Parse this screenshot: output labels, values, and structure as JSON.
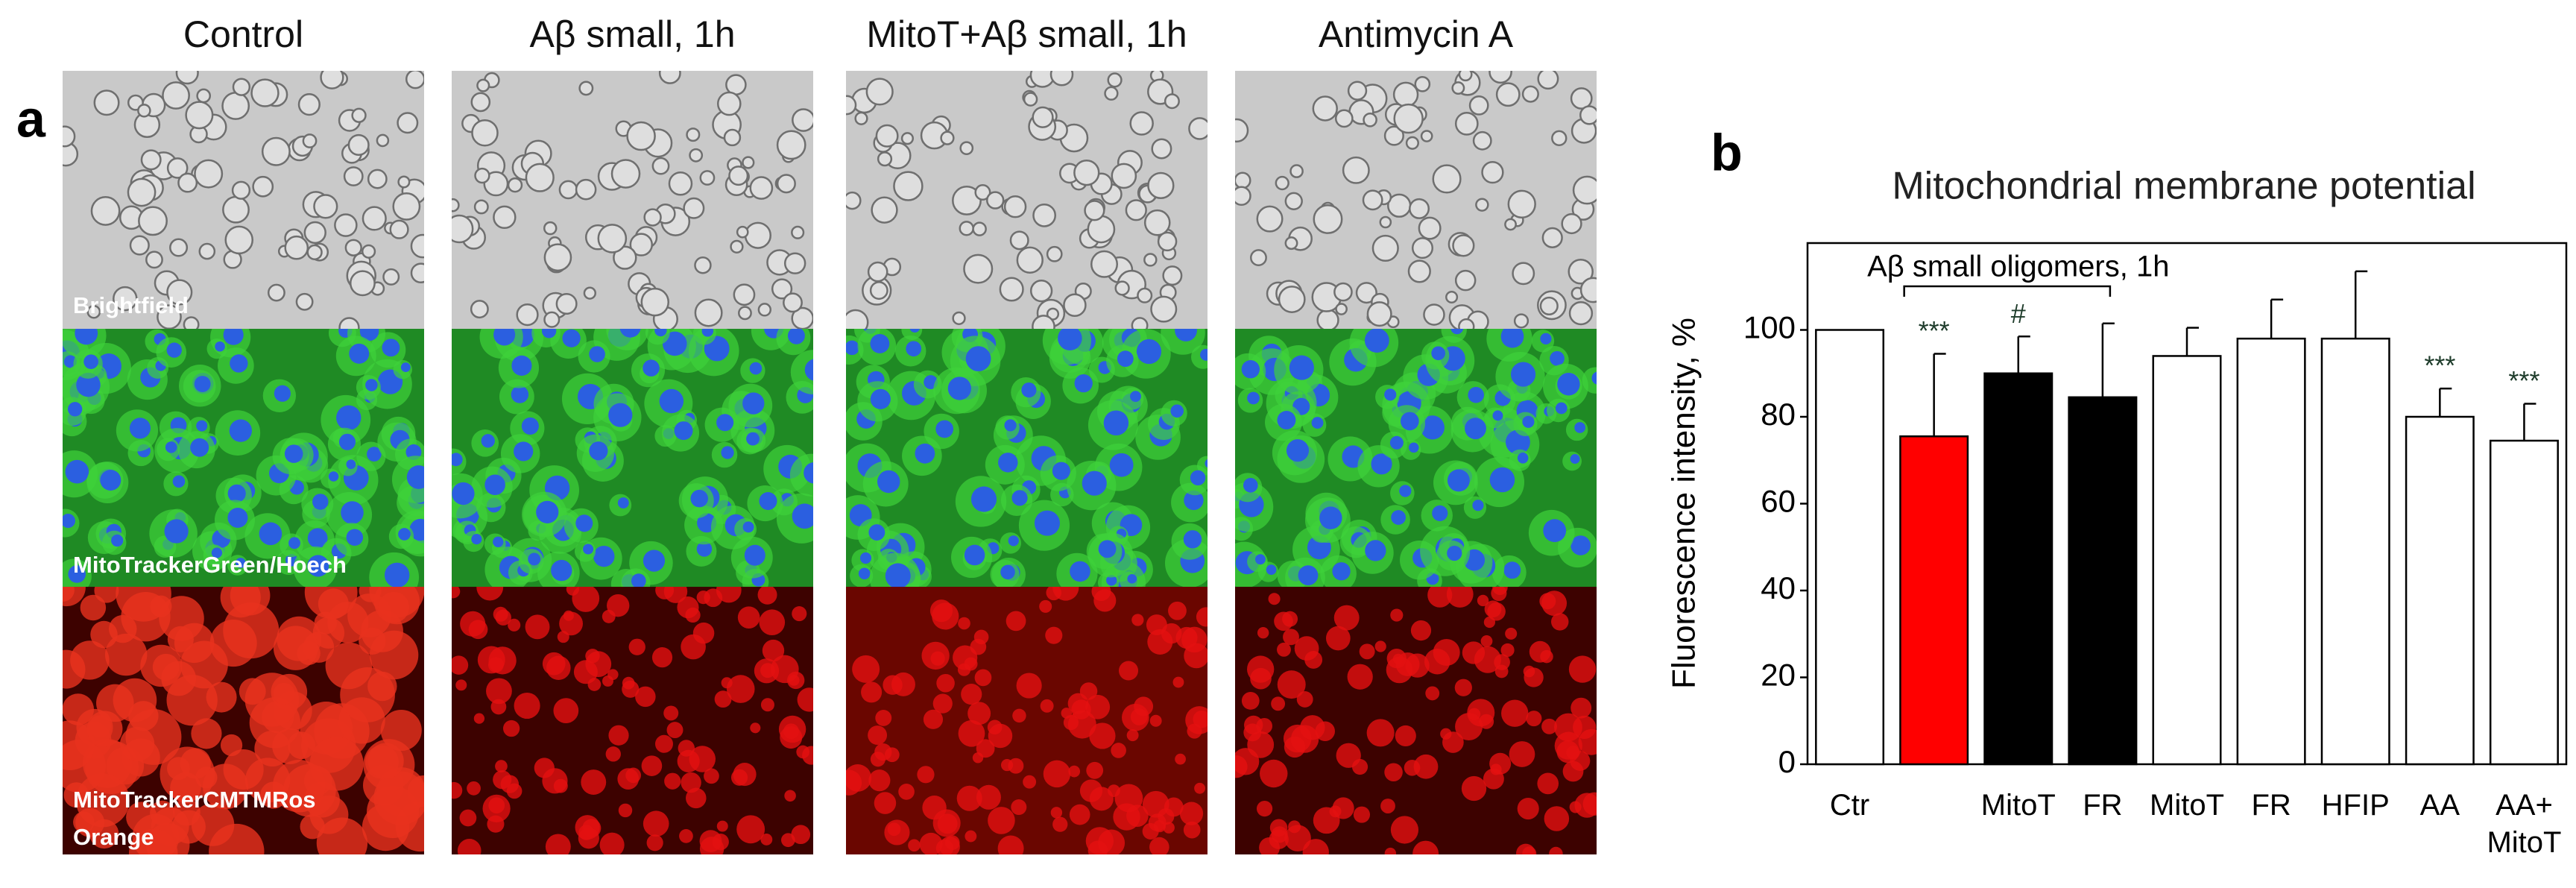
{
  "panel_a": {
    "label": "a",
    "columns": [
      "Control",
      "Aβ small, 1h",
      "MitoT+Aβ small, 1h",
      "Antimycin A"
    ],
    "row_labels": [
      "Brightfield",
      "MitoTrackerGreen/Hoech",
      "MitoTrackerCMTMRos\nOrange"
    ]
  },
  "chart_data": {
    "type": "bar",
    "panel_label": "b",
    "title": "Mitochondrial membrane potential",
    "y_label": "Fluorescence intensity, %",
    "bracket_label": "Aβ small oligomers, 1h",
    "categories": [
      "Ctr",
      null,
      "MitoT",
      "FR",
      "MitoT",
      "FR",
      "HFIP",
      "AA",
      "AA+\nMitoT"
    ],
    "values": [
      100,
      75.5,
      90,
      84.5,
      94,
      98,
      98,
      80,
      74.5
    ],
    "errors": [
      null,
      19,
      8.5,
      17,
      6.5,
      9,
      15.5,
      6.5,
      8.5
    ],
    "colors": [
      "#ffffff",
      "#ff0000",
      "#000000",
      "#000000",
      "#ffffff",
      "#ffffff",
      "#ffffff",
      "#ffffff",
      "#ffffff"
    ],
    "significance": [
      null,
      "***",
      "#",
      null,
      null,
      null,
      null,
      "***",
      "***"
    ],
    "ylim": [
      0,
      120
    ],
    "yticks": [
      0,
      20,
      40,
      60,
      80,
      100
    ]
  }
}
